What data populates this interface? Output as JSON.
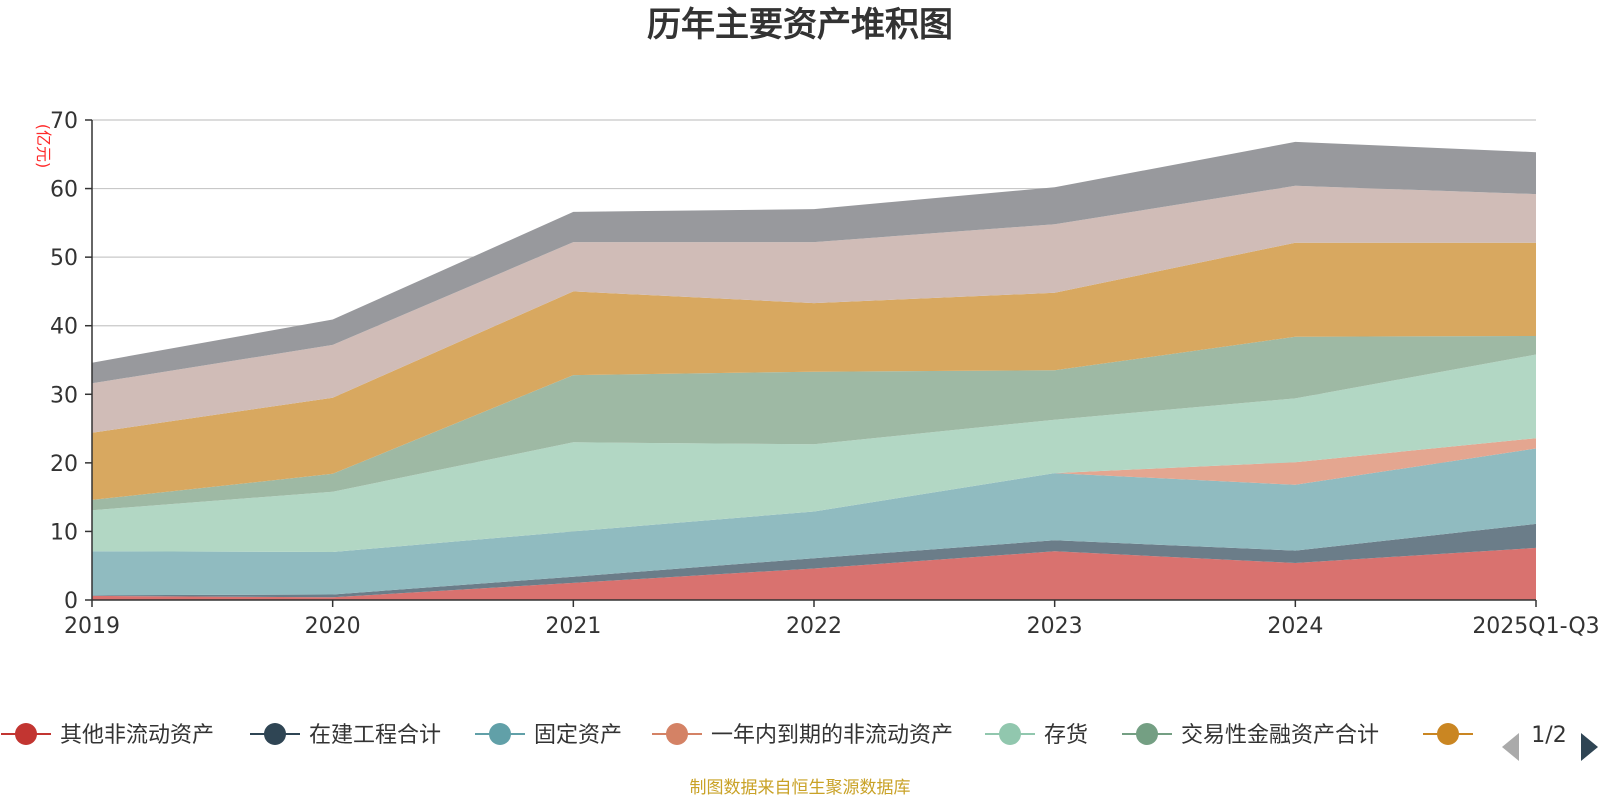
{
  "chart_data": {
    "type": "area",
    "stacked": true,
    "title": "历年主要资产堆积图",
    "ylabel": "(亿元)",
    "xlabel": "",
    "ylim": [
      0,
      70
    ],
    "yticks": [
      0,
      10,
      20,
      30,
      40,
      50,
      60,
      70
    ],
    "grid": true,
    "categories": [
      "2019",
      "2020",
      "2021",
      "2022",
      "2023",
      "2024",
      "2025Q1-Q3"
    ],
    "series": [
      {
        "name": "其他非流动资产",
        "color": "#d9726f",
        "legend_marker": "#c23531",
        "values": [
          0.6,
          0.4,
          2.5,
          4.6,
          7.1,
          5.4,
          7.6
        ]
      },
      {
        "name": "在建工程合计",
        "color": "#6b7d89",
        "legend_marker": "#2f4554",
        "values": [
          0.1,
          0.4,
          0.9,
          1.5,
          1.6,
          1.8,
          3.5
        ]
      },
      {
        "name": "固定资产",
        "color": "#90bbc0",
        "legend_marker": "#61a0a8",
        "values": [
          6.4,
          6.2,
          6.6,
          6.8,
          9.8,
          9.6,
          11.0
        ]
      },
      {
        "name": "一年内到期的非流动资产",
        "color": "#e4a690",
        "legend_marker": "#d48265",
        "values": [
          0.0,
          0.0,
          0.0,
          0.0,
          0.0,
          3.3,
          1.5
        ]
      },
      {
        "name": "存货",
        "color": "#b2d7c4",
        "legend_marker": "#91c7ae",
        "values": [
          6.0,
          8.8,
          13.0,
          9.8,
          7.8,
          9.3,
          12.2
        ]
      },
      {
        "name": "交易性金融资产合计",
        "color": "#9eb9a4",
        "legend_marker": "#749f83",
        "values": [
          1.5,
          2.6,
          9.8,
          10.6,
          7.2,
          9.0,
          2.7
        ]
      },
      {
        "name": "",
        "color": "#d8a860",
        "legend_marker": "#ca8622",
        "values": [
          9.8,
          11.1,
          12.2,
          10.0,
          11.3,
          13.7,
          13.6
        ]
      },
      {
        "name": "",
        "color": "#d0bcb7",
        "legend_marker": "#bda29a",
        "values": [
          7.2,
          7.7,
          7.2,
          8.9,
          10.0,
          8.3,
          7.1
        ]
      },
      {
        "name": "",
        "color": "#98999d",
        "legend_marker": "#6e7074",
        "values": [
          3.0,
          3.7,
          4.4,
          4.8,
          5.4,
          6.4,
          6.1
        ]
      }
    ],
    "legend": {
      "position": "bottom",
      "page": "1/2",
      "visible_count": 7
    }
  },
  "footer": {
    "source": "制图数据来自恒生聚源数据库"
  }
}
